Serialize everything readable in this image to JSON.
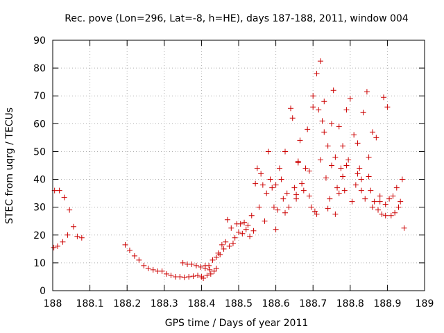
{
  "chart_data": {
    "type": "scatter",
    "title": "Rec. pove (Lon=296, Lat=-8, h=HE), days 187-188, 2011, window 004",
    "xlabel": "GPS time / Days of year 2011",
    "ylabel": "STEC from uqrg / TECUs",
    "xlim": [
      188,
      189
    ],
    "ylim": [
      0,
      90
    ],
    "x_ticks": [
      "188",
      "188.1",
      "188.2",
      "188.3",
      "188.4",
      "188.5",
      "188.6",
      "188.7",
      "188.8",
      "188.9",
      "189"
    ],
    "x_tick_values": [
      188,
      188.1,
      188.2,
      188.3,
      188.4,
      188.5,
      188.6,
      188.7,
      188.8,
      188.9,
      189
    ],
    "y_ticks": [
      "0",
      "10",
      "20",
      "30",
      "40",
      "50",
      "60",
      "70",
      "80",
      "90"
    ],
    "y_tick_values": [
      0,
      10,
      20,
      30,
      40,
      50,
      60,
      70,
      80,
      90
    ],
    "grid": true,
    "marker": "plus",
    "color": "#cc0000",
    "series": [
      {
        "name": "STEC",
        "points": [
          [
            188.003,
            15.5
          ],
          [
            188.005,
            36.0
          ],
          [
            188.013,
            16.0
          ],
          [
            188.018,
            36.0
          ],
          [
            188.027,
            17.5
          ],
          [
            188.031,
            33.5
          ],
          [
            188.04,
            20.0
          ],
          [
            188.045,
            29.0
          ],
          [
            188.056,
            23.0
          ],
          [
            188.066,
            19.5
          ],
          [
            188.078,
            19.0
          ],
          [
            188.195,
            16.5
          ],
          [
            188.207,
            14.5
          ],
          [
            188.22,
            12.5
          ],
          [
            188.232,
            11.0
          ],
          [
            188.245,
            9.0
          ],
          [
            188.257,
            8.0
          ],
          [
            188.27,
            7.5
          ],
          [
            188.282,
            7.0
          ],
          [
            188.294,
            7.0
          ],
          [
            188.306,
            6.0
          ],
          [
            188.318,
            5.5
          ],
          [
            188.33,
            5.0
          ],
          [
            188.342,
            5.0
          ],
          [
            188.354,
            4.8
          ],
          [
            188.366,
            5.0
          ],
          [
            188.378,
            5.2
          ],
          [
            188.39,
            5.5
          ],
          [
            188.4,
            5.0
          ],
          [
            188.35,
            10.0
          ],
          [
            188.362,
            9.5
          ],
          [
            188.374,
            9.5
          ],
          [
            188.386,
            9.0
          ],
          [
            188.398,
            8.5
          ],
          [
            188.41,
            8.0
          ],
          [
            188.422,
            7.5
          ],
          [
            188.434,
            7.0
          ],
          [
            188.405,
            4.5
          ],
          [
            188.415,
            5.5
          ],
          [
            188.425,
            6.0
          ],
          [
            188.44,
            8.0
          ],
          [
            188.41,
            9.0
          ],
          [
            188.42,
            9.0
          ],
          [
            188.43,
            11.0
          ],
          [
            188.44,
            12.0
          ],
          [
            188.45,
            13.0
          ],
          [
            188.46,
            15.0
          ],
          [
            188.445,
            13.5
          ],
          [
            188.455,
            16.5
          ],
          [
            188.465,
            17.5
          ],
          [
            188.475,
            16.0
          ],
          [
            188.47,
            25.5
          ],
          [
            188.48,
            22.5
          ],
          [
            188.485,
            17.0
          ],
          [
            188.49,
            19.0
          ],
          [
            188.495,
            24.0
          ],
          [
            188.5,
            21.0
          ],
          [
            188.505,
            24.0
          ],
          [
            188.51,
            20.5
          ],
          [
            188.515,
            24.5
          ],
          [
            188.52,
            22.0
          ],
          [
            188.525,
            23.5
          ],
          [
            188.53,
            19.5
          ],
          [
            188.535,
            27.0
          ],
          [
            188.54,
            21.5
          ],
          [
            188.545,
            38.5
          ],
          [
            188.55,
            44.0
          ],
          [
            188.555,
            30.0
          ],
          [
            188.56,
            42.0
          ],
          [
            188.565,
            38.0
          ],
          [
            188.57,
            25.0
          ],
          [
            188.575,
            35.0
          ],
          [
            188.58,
            50.0
          ],
          [
            188.585,
            40.0
          ],
          [
            188.59,
            37.0
          ],
          [
            188.595,
            30.0
          ],
          [
            188.6,
            22.0
          ],
          [
            188.605,
            29.0
          ],
          [
            188.61,
            44.0
          ],
          [
            188.615,
            40.0
          ],
          [
            188.62,
            33.0
          ],
          [
            188.625,
            50.0
          ],
          [
            188.63,
            35.0
          ],
          [
            188.635,
            30.0
          ],
          [
            188.64,
            65.5
          ],
          [
            188.645,
            62.0
          ],
          [
            188.65,
            37.0
          ],
          [
            188.655,
            33.0
          ],
          [
            188.66,
            46.0
          ],
          [
            188.665,
            54.0
          ],
          [
            188.67,
            38.5
          ],
          [
            188.675,
            36.0
          ],
          [
            188.68,
            44.0
          ],
          [
            188.685,
            58.0
          ],
          [
            188.69,
            34.0
          ],
          [
            188.695,
            30.0
          ],
          [
            188.7,
            70.0
          ],
          [
            188.705,
            28.5
          ],
          [
            188.71,
            78.0
          ],
          [
            188.715,
            65.0
          ],
          [
            188.72,
            82.5
          ],
          [
            188.725,
            61.0
          ],
          [
            188.73,
            68.0
          ],
          [
            188.735,
            40.5
          ],
          [
            188.74,
            52.0
          ],
          [
            188.745,
            33.0
          ],
          [
            188.75,
            45.0
          ],
          [
            188.755,
            72.0
          ],
          [
            188.76,
            48.0
          ],
          [
            188.765,
            37.0
          ],
          [
            188.77,
            59.0
          ],
          [
            188.775,
            44.0
          ],
          [
            188.78,
            41.0
          ],
          [
            188.785,
            36.0
          ],
          [
            188.79,
            65.0
          ],
          [
            188.795,
            47.0
          ],
          [
            188.8,
            69.0
          ],
          [
            188.805,
            32.0
          ],
          [
            188.81,
            56.0
          ],
          [
            188.815,
            38.0
          ],
          [
            188.82,
            53.0
          ],
          [
            188.825,
            44.0
          ],
          [
            188.83,
            36.0
          ],
          [
            188.835,
            64.0
          ],
          [
            188.84,
            33.0
          ],
          [
            188.845,
            71.5
          ],
          [
            188.85,
            48.0
          ],
          [
            188.855,
            36.0
          ],
          [
            188.86,
            57.0
          ],
          [
            188.865,
            32.0
          ],
          [
            188.87,
            55.0
          ],
          [
            188.875,
            29.0
          ],
          [
            188.88,
            34.0
          ],
          [
            188.885,
            27.5
          ],
          [
            188.89,
            69.5
          ],
          [
            188.895,
            31.0
          ],
          [
            188.9,
            66.0
          ],
          [
            188.905,
            33.0
          ],
          [
            188.91,
            27.0
          ],
          [
            188.915,
            34.0
          ],
          [
            188.92,
            28.0
          ],
          [
            188.925,
            37.0
          ],
          [
            188.93,
            30.0
          ],
          [
            188.935,
            32.0
          ],
          [
            188.94,
            40.0
          ],
          [
            188.945,
            22.5
          ],
          [
            188.625,
            28.0
          ],
          [
            188.655,
            34.5
          ],
          [
            188.69,
            43.0
          ],
          [
            188.71,
            27.5
          ],
          [
            188.74,
            29.5
          ],
          [
            188.76,
            27.5
          ],
          [
            188.79,
            45.0
          ],
          [
            188.83,
            40.0
          ],
          [
            188.86,
            30.0
          ],
          [
            188.88,
            32.0
          ],
          [
            188.895,
            27.0
          ],
          [
            188.6,
            38.0
          ],
          [
            188.66,
            46.5
          ],
          [
            188.72,
            47.0
          ],
          [
            188.77,
            35.0
          ],
          [
            188.82,
            42.0
          ],
          [
            188.85,
            41.0
          ],
          [
            188.7,
            66.0
          ],
          [
            188.73,
            57.0
          ],
          [
            188.75,
            60.0
          ],
          [
            188.78,
            52.0
          ]
        ]
      }
    ]
  }
}
